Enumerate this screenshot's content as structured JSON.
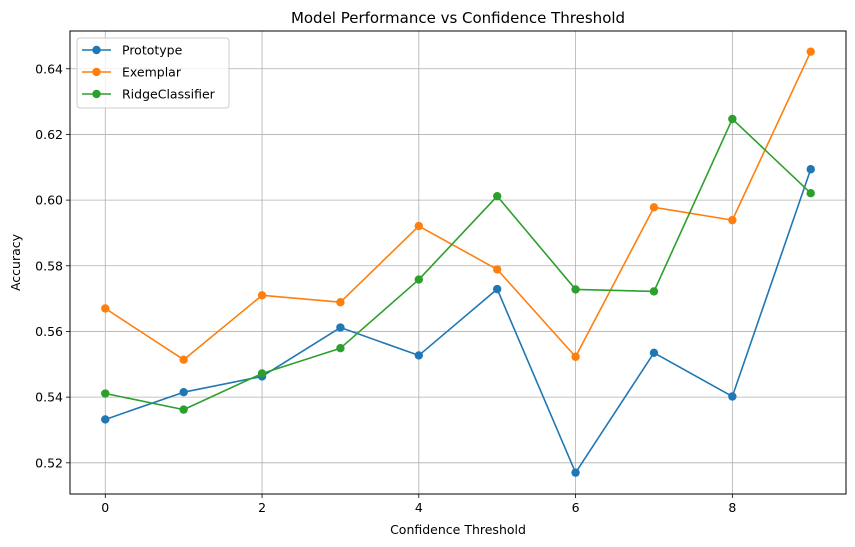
{
  "chart_data": {
    "type": "line",
    "title": "Model Performance vs Confidence Threshold",
    "xlabel": "Confidence Threshold",
    "ylabel": "Accuracy",
    "x": [
      0,
      1,
      2,
      3,
      4,
      5,
      6,
      7,
      8,
      9
    ],
    "xlim": [
      -0.45,
      9.45
    ],
    "ylim": [
      0.5105,
      0.6515
    ],
    "xticks": [
      0,
      2,
      4,
      6,
      8
    ],
    "xtick_labels": [
      "0",
      "2",
      "4",
      "6",
      "8"
    ],
    "yticks": [
      0.52,
      0.54,
      0.56,
      0.58,
      0.6,
      0.62,
      0.64
    ],
    "ytick_labels": [
      "0.52",
      "0.54",
      "0.56",
      "0.58",
      "0.60",
      "0.62",
      "0.64"
    ],
    "grid": true,
    "legend_position": "top-left",
    "series": [
      {
        "name": "Prototype",
        "color": "#1f77b4",
        "values": [
          0.5332,
          0.5415,
          0.5463,
          0.5612,
          0.5527,
          0.5729,
          0.517,
          0.5535,
          0.5402,
          0.6094
        ]
      },
      {
        "name": "Exemplar",
        "color": "#ff7f0e",
        "values": [
          0.567,
          0.5514,
          0.571,
          0.5689,
          0.5921,
          0.5789,
          0.5523,
          0.5978,
          0.5939,
          0.6452
        ]
      },
      {
        "name": "RidgeClassifier",
        "color": "#2ca02c",
        "values": [
          0.5411,
          0.5362,
          0.5472,
          0.5549,
          0.5758,
          0.6012,
          0.5728,
          0.5722,
          0.6247,
          0.6021
        ]
      }
    ]
  }
}
